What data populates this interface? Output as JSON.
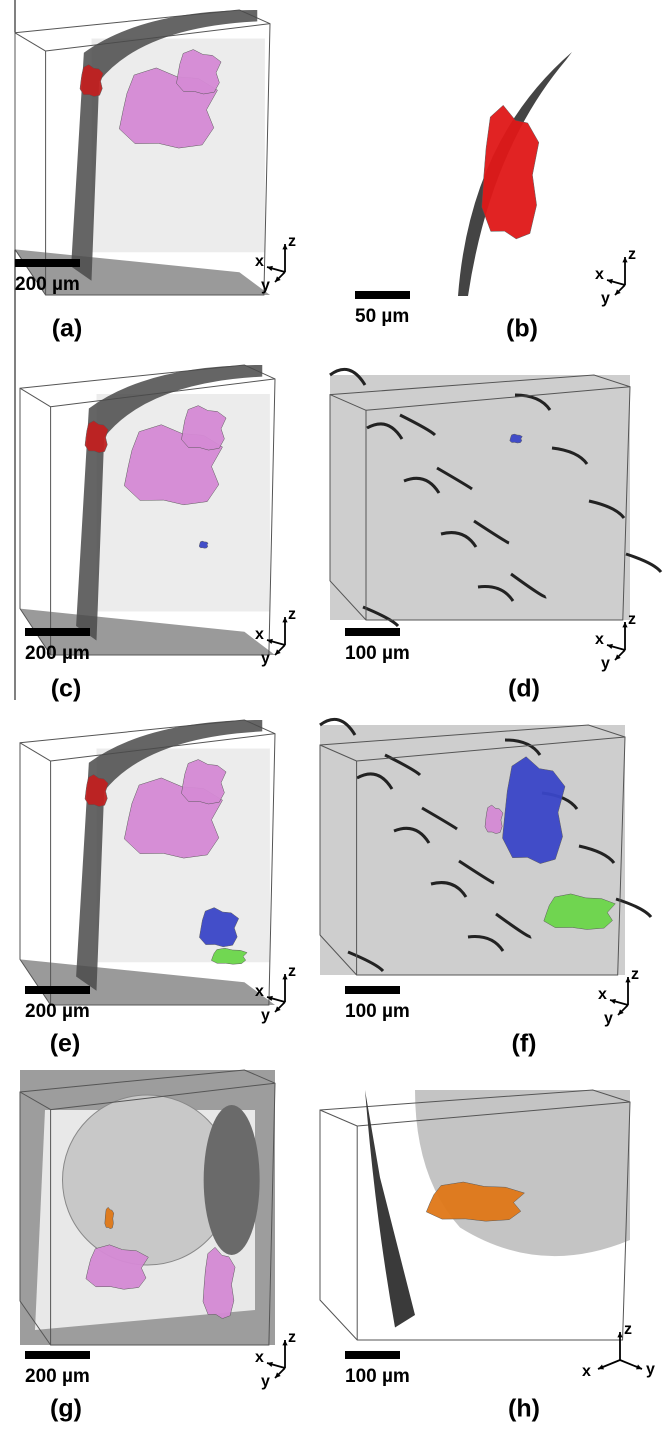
{
  "panels": [
    {
      "label": "(a)",
      "scale_bar": "200 µm",
      "axes": {
        "x": "x",
        "y": "y",
        "z": "z"
      }
    },
    {
      "label": "(b)",
      "scale_bar": "50 µm",
      "axes": {
        "x": "x",
        "y": "y",
        "z": "z"
      }
    },
    {
      "label": "(c)",
      "scale_bar": "200 µm",
      "axes": {
        "x": "x",
        "y": "y",
        "z": "z"
      }
    },
    {
      "label": "(d)",
      "scale_bar": "100 µm",
      "axes": {
        "x": "x",
        "y": "y",
        "z": "z"
      }
    },
    {
      "label": "(e)",
      "scale_bar": "200 µm",
      "axes": {
        "x": "x",
        "y": "y",
        "z": "z"
      }
    },
    {
      "label": "(f)",
      "scale_bar": "100 µm",
      "axes": {
        "x": "x",
        "y": "y",
        "z": "z"
      }
    },
    {
      "label": "(g)",
      "scale_bar": "200 µm",
      "axes": {
        "x": "x",
        "y": "y",
        "z": "z"
      }
    },
    {
      "label": "(h)",
      "scale_bar": "100 µm",
      "axes": {
        "x": "x",
        "y": "y",
        "z": "z"
      }
    }
  ]
}
